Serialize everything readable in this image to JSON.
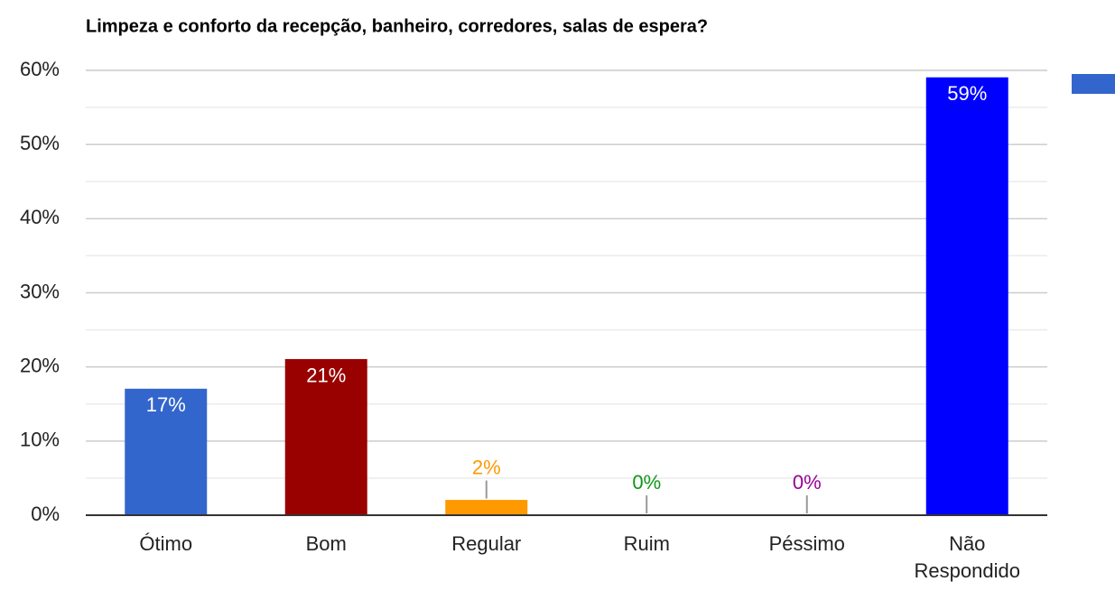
{
  "chart_data": {
    "type": "bar",
    "title": "Limpeza e conforto da recepção, banheiro, corredores, salas de espera?",
    "categories": [
      "Ótimo",
      "Bom",
      "Regular",
      "Ruim",
      "Péssimo",
      "Não Respondido"
    ],
    "values": [
      17,
      21,
      2,
      0,
      0,
      59
    ],
    "value_labels": [
      "17%",
      "21%",
      "2%",
      "0%",
      "0%",
      "59%"
    ],
    "colors": [
      "#3366cc",
      "#990000",
      "#ff9900",
      "#109618",
      "#990099",
      "#0000ff"
    ],
    "ylim": [
      0,
      60
    ],
    "yticks": [
      {
        "value": 0,
        "label": "0%"
      },
      {
        "value": 10,
        "label": "10%"
      },
      {
        "value": 20,
        "label": "20%"
      },
      {
        "value": 30,
        "label": "30%"
      },
      {
        "value": 40,
        "label": "40%"
      },
      {
        "value": 50,
        "label": "50%"
      },
      {
        "value": 60,
        "label": "60%"
      }
    ],
    "minor_yticks": [
      5,
      15,
      25,
      35,
      45,
      55
    ],
    "grid": true
  }
}
